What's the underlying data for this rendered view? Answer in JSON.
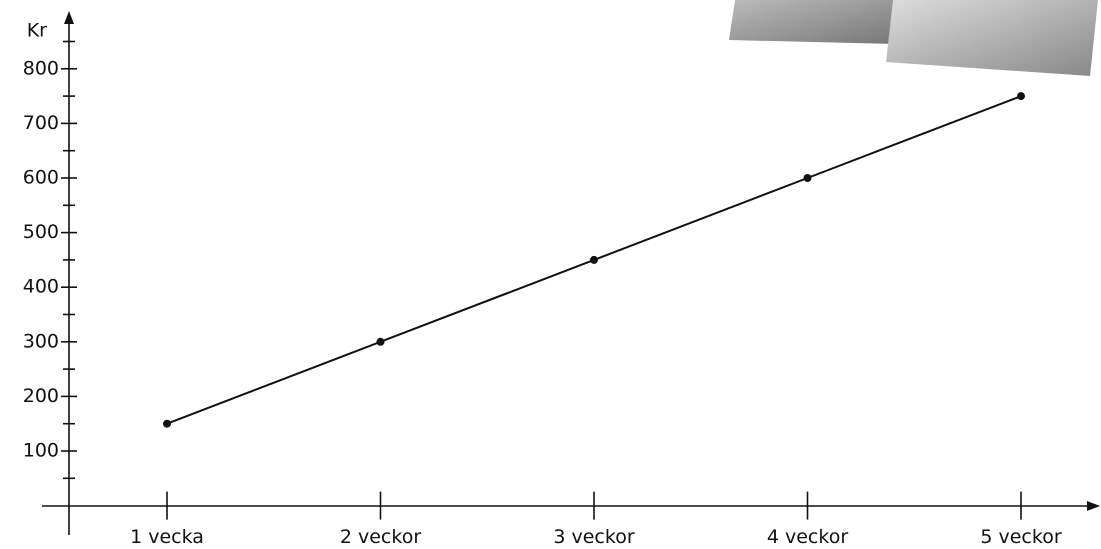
{
  "chart_data": {
    "type": "line",
    "y_label": "Kr",
    "categories": [
      "1 vecka",
      "2 veckor",
      "3 veckor",
      "4 veckor",
      "5 veckor"
    ],
    "values": [
      150,
      300,
      450,
      600,
      750
    ],
    "color": "#111111",
    "ylim": [
      0,
      900
    ],
    "yticks": [
      100,
      200,
      300,
      400,
      500,
      600,
      700,
      800
    ],
    "yminorticks": [
      50,
      150,
      250,
      350,
      450,
      550,
      650,
      750,
      850
    ]
  }
}
